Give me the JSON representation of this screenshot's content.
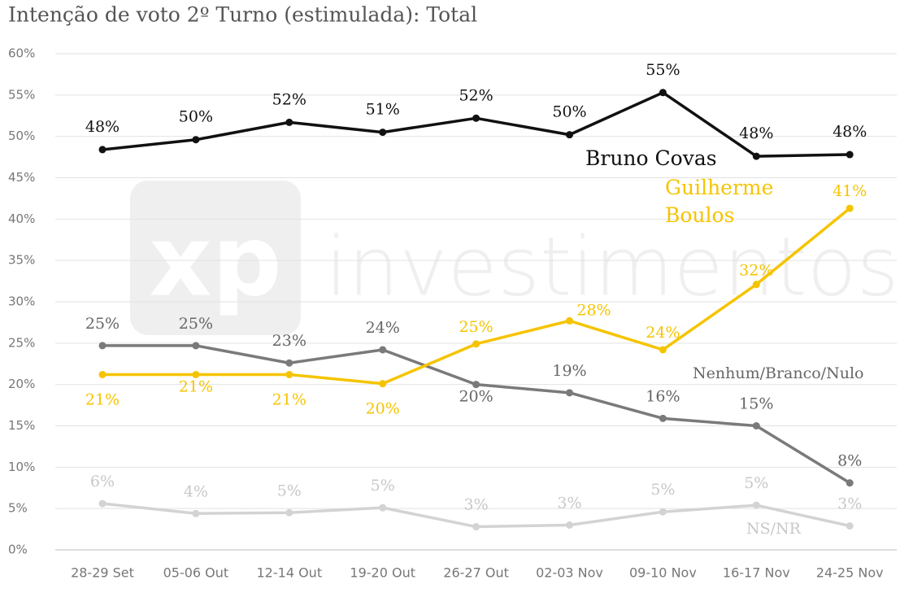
{
  "chart_data": {
    "type": "line",
    "title": "Intenção de voto 2º Turno (estimulada): Total",
    "watermark": [
      "xp",
      "investimentos"
    ],
    "categories": [
      "28-29 Set",
      "05-06 Out",
      "12-14 Out",
      "19-20 Out",
      "26-27 Out",
      "02-03 Nov",
      "09-10 Nov",
      "16-17 Nov",
      "24-25 Nov"
    ],
    "ylim": [
      0,
      60
    ],
    "yticks": [
      {
        "value": 0,
        "label": "0%"
      },
      {
        "value": 5,
        "label": "5%"
      },
      {
        "value": 10,
        "label": "10%"
      },
      {
        "value": 15,
        "label": "15%"
      },
      {
        "value": 20,
        "label": "20%"
      },
      {
        "value": 25,
        "label": "25%"
      },
      {
        "value": 30,
        "label": "30%"
      },
      {
        "value": 35,
        "label": "35%"
      },
      {
        "value": 40,
        "label": "40%"
      },
      {
        "value": 45,
        "label": "45%"
      },
      {
        "value": 50,
        "label": "50%"
      },
      {
        "value": 55,
        "label": "55%"
      },
      {
        "value": 60,
        "label": "60%"
      }
    ],
    "grid": true,
    "series": [
      {
        "name": "Bruno Covas",
        "color": "#111111",
        "values": [
          48.4,
          49.6,
          51.7,
          50.5,
          52.2,
          50.2,
          55.3,
          47.6,
          47.8
        ],
        "value_labels": [
          "48%",
          "50%",
          "52%",
          "51%",
          "52%",
          "50%",
          "55%",
          "48%",
          "48%"
        ]
      },
      {
        "name": "Guilherme Boulos",
        "color": "#f5c400",
        "values": [
          21.2,
          21.2,
          21.2,
          20.1,
          24.9,
          27.7,
          24.2,
          32.1,
          41.3
        ],
        "value_labels": [
          "21%",
          "21%",
          "21%",
          "20%",
          "25%",
          "28%",
          "24%",
          "32%",
          "41%"
        ]
      },
      {
        "name": "Nenhum/Branco/Nulo",
        "color": "#7a7a7a",
        "values": [
          24.7,
          24.7,
          22.6,
          24.2,
          20.0,
          19.0,
          15.9,
          15.0,
          8.1
        ],
        "value_labels": [
          "25%",
          "25%",
          "23%",
          "24%",
          "20%",
          "19%",
          "16%",
          "15%",
          "8%"
        ]
      },
      {
        "name": "NS/NR",
        "color": "#d3d3d3",
        "values": [
          5.6,
          4.4,
          4.5,
          5.1,
          2.8,
          3.0,
          4.6,
          5.4,
          2.9
        ],
        "value_labels": [
          "6%",
          "4%",
          "5%",
          "5%",
          "3%",
          "3%",
          "5%",
          "5%",
          "3%"
        ]
      }
    ]
  }
}
